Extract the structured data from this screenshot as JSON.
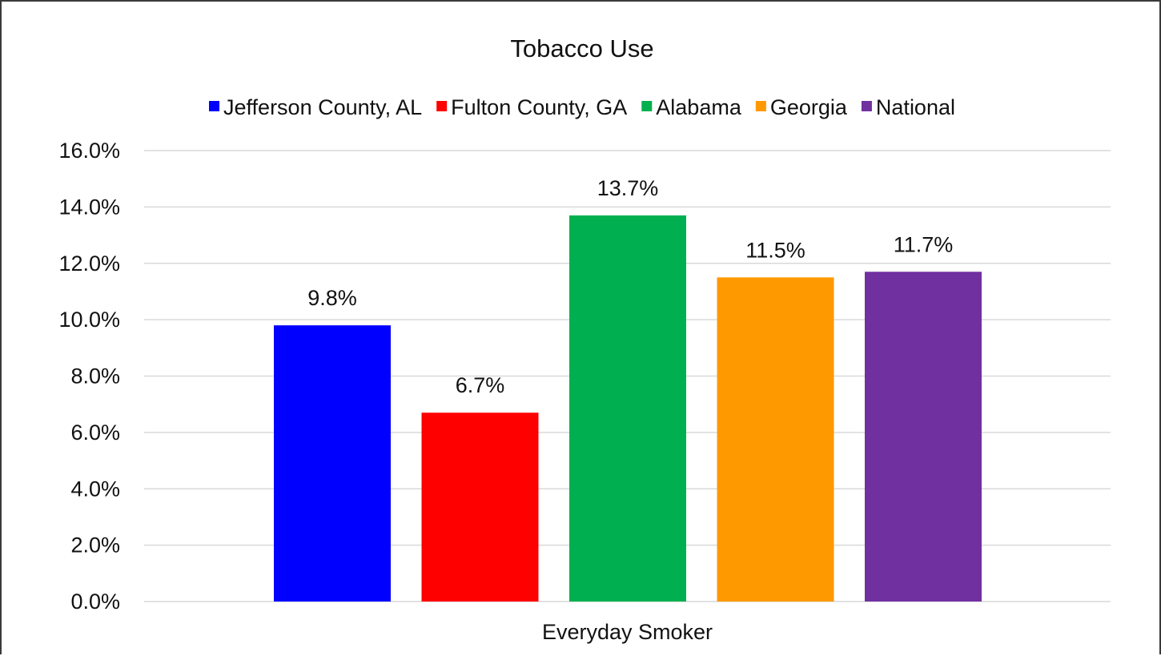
{
  "chart_data": {
    "type": "bar",
    "title": "Tobacco Use",
    "categories": [
      "Everyday Smoker"
    ],
    "series": [
      {
        "name": "Jefferson County, AL",
        "values": [
          9.8
        ],
        "color": "#0000FF",
        "label": "9.8%"
      },
      {
        "name": "Fulton County, GA",
        "values": [
          6.7
        ],
        "color": "#FF0000",
        "label": "6.7%"
      },
      {
        "name": "Alabama",
        "values": [
          13.7
        ],
        "color": "#00B050",
        "label": "13.7%"
      },
      {
        "name": "Georgia",
        "values": [
          11.5
        ],
        "color": "#FF9900",
        "label": "11.5%"
      },
      {
        "name": "National",
        "values": [
          11.7
        ],
        "color": "#7030A0",
        "label": "11.7%"
      }
    ],
    "ylim": [
      0,
      16
    ],
    "yticks": [
      {
        "value": 0,
        "label": "0.0%"
      },
      {
        "value": 2,
        "label": "2.0%"
      },
      {
        "value": 4,
        "label": "4.0%"
      },
      {
        "value": 6,
        "label": "6.0%"
      },
      {
        "value": 8,
        "label": "8.0%"
      },
      {
        "value": 10,
        "label": "10.0%"
      },
      {
        "value": 12,
        "label": "12.0%"
      },
      {
        "value": 14,
        "label": "14.0%"
      },
      {
        "value": 16,
        "label": "16.0%"
      }
    ],
    "grid": true,
    "legend_position": "top",
    "gridline_color": "#D9D9D9"
  }
}
